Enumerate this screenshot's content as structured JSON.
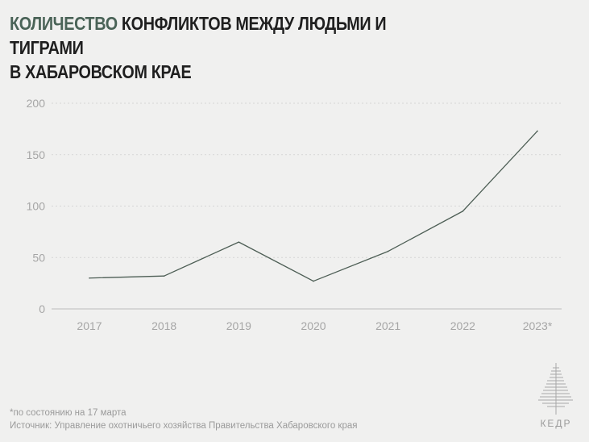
{
  "title": {
    "accent": "КОЛИЧЕСТВО",
    "rest_line1": " КОНФЛИКТОВ МЕЖДУ ЛЮДЬМИ И ТИГРАМИ",
    "line2": "В ХАБАРОВСКОМ КРАЕ"
  },
  "footnote": {
    "asterisk_note": "*по состоянию на 17 марта",
    "source": "Источник: Управление охотничьего хозяйства Правительства Хабаровского края"
  },
  "logo": {
    "text": "КЕДР",
    "icon": "cedar-tree-icon"
  },
  "colors": {
    "accent": "#4a6357",
    "line": "#4d5e55",
    "grid": "#d6d6d6",
    "axis": "#bdbdbd",
    "tick_text": "#a6a6a6",
    "background": "#f0f0ef"
  },
  "chart_data": {
    "type": "line",
    "categories": [
      "2017",
      "2018",
      "2019",
      "2020",
      "2021",
      "2022",
      "2023*"
    ],
    "series": [
      {
        "values": [
          30,
          32,
          65,
          27,
          56,
          95,
          173
        ]
      }
    ],
    "y_ticks": [
      "0",
      "50",
      "100",
      "150",
      "200"
    ],
    "ylim": [
      0,
      200
    ],
    "grid": "horizontal dotted",
    "legend": "none",
    "xlabel": "",
    "ylabel": ""
  }
}
